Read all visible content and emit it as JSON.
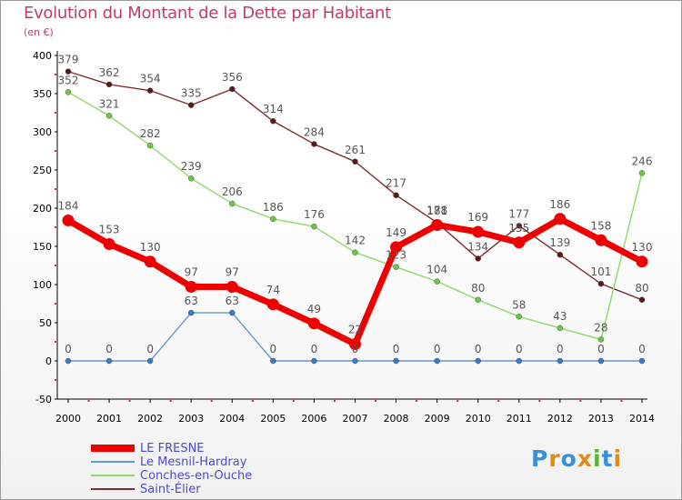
{
  "title": "Evolution du Montant de la Dette par Habitant",
  "subtitle": "(en €)",
  "logo": {
    "text": "Proxiti"
  },
  "chart_data": {
    "type": "line",
    "x": [
      "2000",
      "2001",
      "2002",
      "2003",
      "2004",
      "2005",
      "2006",
      "2007",
      "2008",
      "2009",
      "2010",
      "2011",
      "2012",
      "2013",
      "2014"
    ],
    "ylim": [
      -50,
      400
    ],
    "yticks": [
      -50,
      0,
      50,
      100,
      150,
      200,
      250,
      300,
      350,
      400
    ],
    "grid": false,
    "legend_position": "bottom-left",
    "series": [
      {
        "name": "Saint-Élier",
        "color": "#7b2c2c",
        "marker": "#5a1a1a",
        "values": [
          379,
          362,
          354,
          335,
          356,
          314,
          284,
          261,
          217,
          181,
          134,
          177,
          139,
          101,
          80
        ]
      },
      {
        "name": "Conches-en-Ouche",
        "color": "#8fd86a",
        "marker": "#6cc93f",
        "values": [
          352,
          321,
          282,
          239,
          206,
          186,
          176,
          142,
          123,
          104,
          80,
          58,
          43,
          28,
          246
        ]
      },
      {
        "name": "Le Mesnil-Hardray",
        "color": "#6699cc",
        "marker": "#3a7bc8",
        "values": [
          0,
          0,
          0,
          63,
          63,
          0,
          0,
          0,
          0,
          0,
          0,
          0,
          0,
          0,
          0
        ]
      },
      {
        "name": "LE FRESNE",
        "color": "#ee0000",
        "marker": "#ee0000",
        "values": [
          184,
          153,
          130,
          97,
          97,
          74,
          49,
          22,
          149,
          178,
          169,
          155,
          186,
          158,
          130
        ]
      }
    ]
  }
}
